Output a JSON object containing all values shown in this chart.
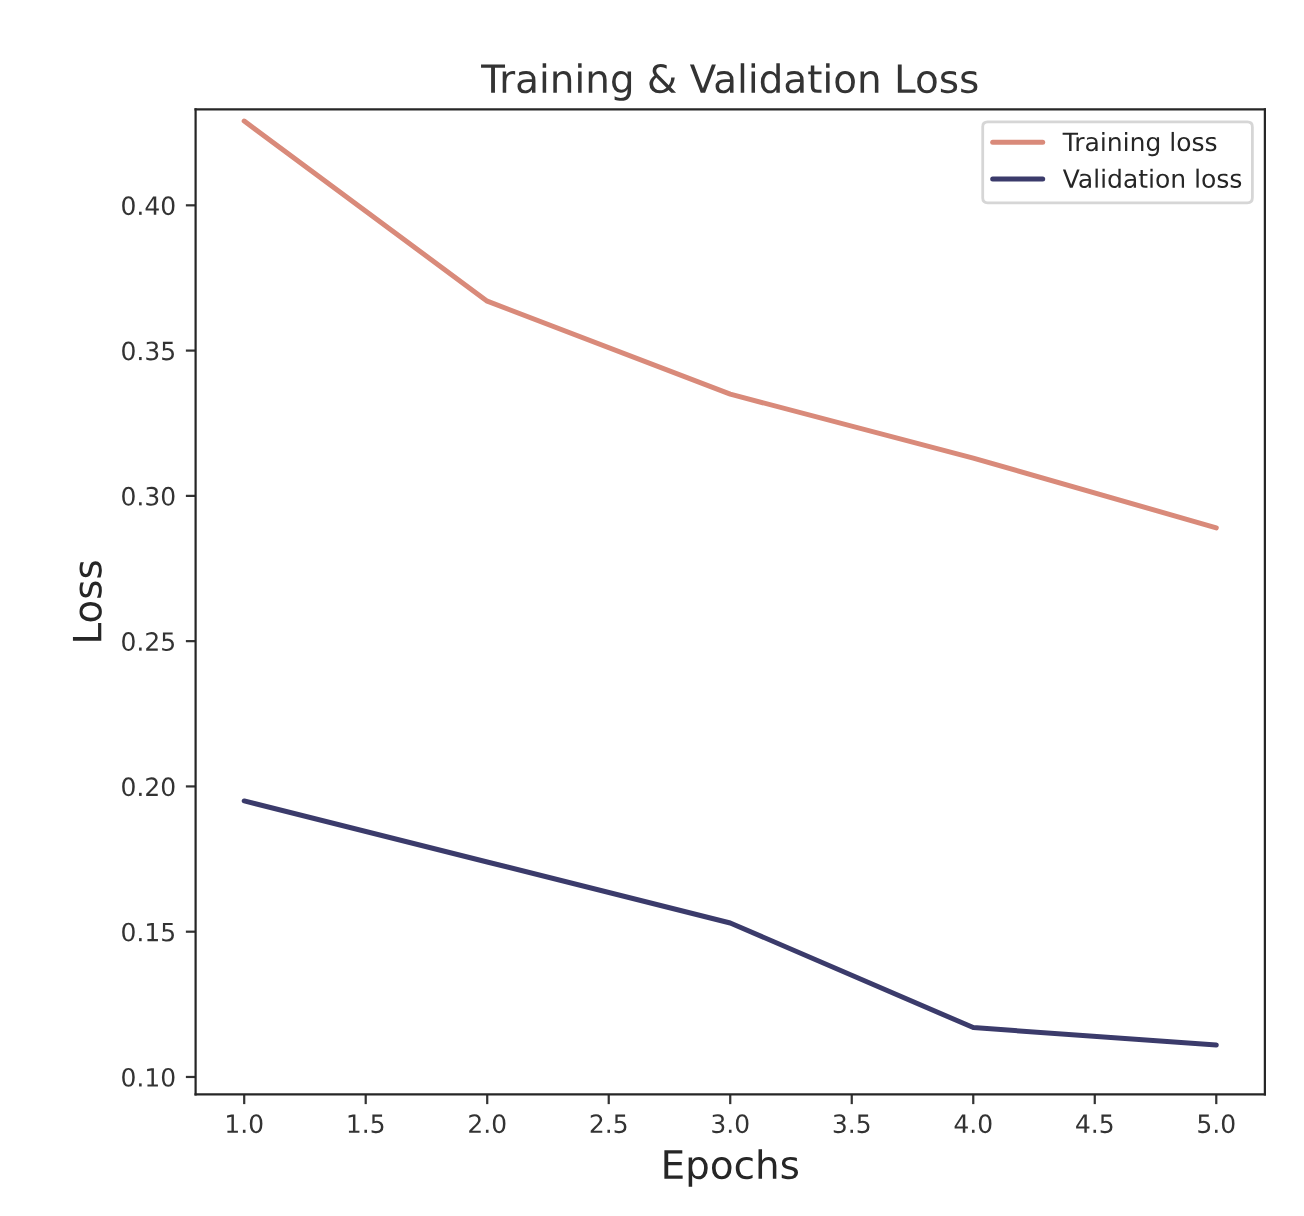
{
  "chart_data": {
    "type": "line",
    "title": "Training & Validation Loss",
    "xlabel": "Epochs",
    "ylabel": "Loss",
    "x": [
      1,
      2,
      3,
      4,
      5
    ],
    "series": [
      {
        "name": "Training loss",
        "color": "#d98a7a",
        "values": [
          0.429,
          0.367,
          0.335,
          0.313,
          0.289
        ]
      },
      {
        "name": "Validation loss",
        "color": "#3b3b6b",
        "values": [
          0.195,
          0.174,
          0.153,
          0.117,
          0.111
        ]
      }
    ],
    "xlim": [
      0.8,
      5.2
    ],
    "xticks": [
      {
        "value": 1,
        "label": "1.0"
      },
      {
        "value": 1.5,
        "label": "1.5"
      },
      {
        "value": 2,
        "label": "2.0"
      },
      {
        "value": 2.5,
        "label": "2.5"
      },
      {
        "value": 3,
        "label": "3.0"
      },
      {
        "value": 3.5,
        "label": "3.5"
      },
      {
        "value": 4,
        "label": "4.0"
      },
      {
        "value": 4.5,
        "label": "4.5"
      },
      {
        "value": 5,
        "label": "5.0"
      }
    ],
    "ylim": [
      0.094,
      0.433
    ],
    "yticks": [
      {
        "value": 0.1,
        "label": "0.10"
      },
      {
        "value": 0.15,
        "label": "0.15"
      },
      {
        "value": 0.2,
        "label": "0.20"
      },
      {
        "value": 0.25,
        "label": "0.25"
      },
      {
        "value": 0.3,
        "label": "0.30"
      },
      {
        "value": 0.35,
        "label": "0.35"
      },
      {
        "value": 0.4,
        "label": "0.40"
      }
    ],
    "grid": false,
    "legend": "top right",
    "marker": "none",
    "line_style": "solid"
  }
}
